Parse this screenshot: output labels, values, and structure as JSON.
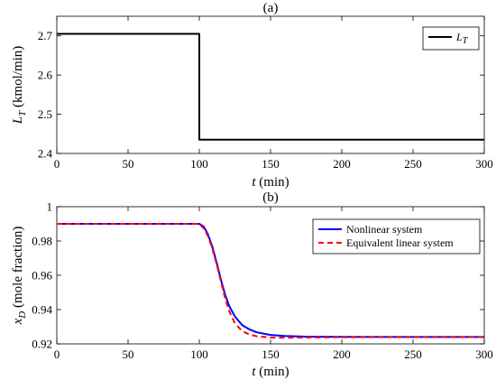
{
  "chart_data": [
    {
      "type": "line",
      "title": "(a)",
      "xlabel_var": "t",
      "xlabel_unit": " (min)",
      "ylabel_var": "L",
      "ylabel_sub": "T",
      "ylabel_unit": " (kmol/min)",
      "xlim": [
        0,
        300
      ],
      "ylim": [
        2.4,
        2.75
      ],
      "xticks": [
        0,
        50,
        100,
        150,
        200,
        250,
        300
      ],
      "yticks": [
        2.4,
        2.5,
        2.6,
        2.7
      ],
      "ytick_labels": [
        "2.4",
        "2.5",
        "2.6",
        "2.7"
      ],
      "grid": false,
      "legend_position": "top-right",
      "series": [
        {
          "name": "L",
          "name_sub": "T",
          "color": "#000000",
          "style": "solid",
          "x": [
            0,
            100,
            100,
            300
          ],
          "y": [
            2.705,
            2.705,
            2.435,
            2.435
          ]
        }
      ]
    },
    {
      "type": "line",
      "title": "(b)",
      "xlabel_var": "t",
      "xlabel_unit": " (min)",
      "ylabel_var": "x",
      "ylabel_sub": "D",
      "ylabel_unit": " (mole fraction)",
      "xlim": [
        0,
        300
      ],
      "ylim": [
        0.92,
        1.0
      ],
      "xticks": [
        0,
        50,
        100,
        150,
        200,
        250,
        300
      ],
      "yticks": [
        0.92,
        0.94,
        0.96,
        0.98,
        1.0
      ],
      "ytick_labels": [
        "0.92",
        "0.94",
        "0.96",
        "0.98",
        "1"
      ],
      "grid": false,
      "legend_position": "top-right",
      "series": [
        {
          "name": "Nonlinear system",
          "color": "#0000ff",
          "style": "solid",
          "x": [
            0,
            100,
            103,
            106,
            109,
            112,
            115,
            118,
            121,
            125,
            130,
            135,
            140,
            150,
            160,
            175,
            200,
            250,
            300
          ],
          "y": [
            0.99,
            0.99,
            0.9885,
            0.984,
            0.977,
            0.968,
            0.958,
            0.949,
            0.942,
            0.936,
            0.931,
            0.9285,
            0.9268,
            0.9252,
            0.9246,
            0.9242,
            0.9241,
            0.924,
            0.924
          ]
        },
        {
          "name": "Equivalent linear system",
          "color": "#ff0000",
          "style": "dashed",
          "x": [
            0,
            100,
            103,
            106,
            109,
            112,
            115,
            118,
            121,
            125,
            130,
            135,
            140,
            150,
            160,
            175,
            200,
            250,
            300
          ],
          "y": [
            0.99,
            0.99,
            0.9875,
            0.983,
            0.976,
            0.967,
            0.957,
            0.947,
            0.939,
            0.932,
            0.9275,
            0.9255,
            0.9245,
            0.9237,
            0.9236,
            0.9237,
            0.9239,
            0.924,
            0.924
          ]
        }
      ]
    }
  ]
}
